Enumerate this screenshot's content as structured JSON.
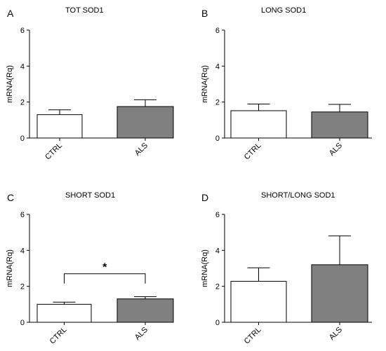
{
  "colors": {
    "ctrl_fill": "#ffffff",
    "als_fill": "#808080",
    "stroke": "#000000"
  },
  "chart_data": [
    {
      "panel": "A",
      "type": "bar",
      "title": "TOT SOD1",
      "ylabel": "mRNA(Rq)",
      "xlabel": "",
      "ylim": [
        0,
        6
      ],
      "yticks": [
        0,
        2,
        4,
        6
      ],
      "grid": false,
      "categories": [
        "CTRL",
        "ALS"
      ],
      "values": [
        1.3,
        1.75
      ],
      "errors": [
        0.27,
        0.38
      ],
      "significance": null
    },
    {
      "panel": "B",
      "type": "bar",
      "title": "LONG SOD1",
      "ylabel": "mRNA(Rq)",
      "xlabel": "",
      "ylim": [
        0,
        6
      ],
      "yticks": [
        0,
        2,
        4,
        6
      ],
      "grid": false,
      "categories": [
        "CTRL",
        "ALS"
      ],
      "values": [
        1.52,
        1.45
      ],
      "errors": [
        0.37,
        0.42
      ],
      "significance": null
    },
    {
      "panel": "C",
      "type": "bar",
      "title": "SHORT SOD1",
      "ylabel": "mRNA(Rq)",
      "xlabel": "",
      "ylim": [
        0,
        6
      ],
      "yticks": [
        0,
        2,
        4,
        6
      ],
      "grid": false,
      "categories": [
        "CTRL",
        "ALS"
      ],
      "values": [
        1.0,
        1.3
      ],
      "errors": [
        0.12,
        0.12
      ],
      "significance": {
        "label": "*",
        "bracket_y": 2.7
      }
    },
    {
      "panel": "D",
      "type": "bar",
      "title": "SHORT/LONG SOD1",
      "ylabel": "mRNA(Rq)",
      "xlabel": "",
      "ylim": [
        0,
        6
      ],
      "yticks": [
        0,
        2,
        4,
        6
      ],
      "grid": false,
      "categories": [
        "CTRL",
        "ALS"
      ],
      "values": [
        2.28,
        3.2
      ],
      "errors": [
        0.75,
        1.6
      ],
      "significance": null
    }
  ]
}
